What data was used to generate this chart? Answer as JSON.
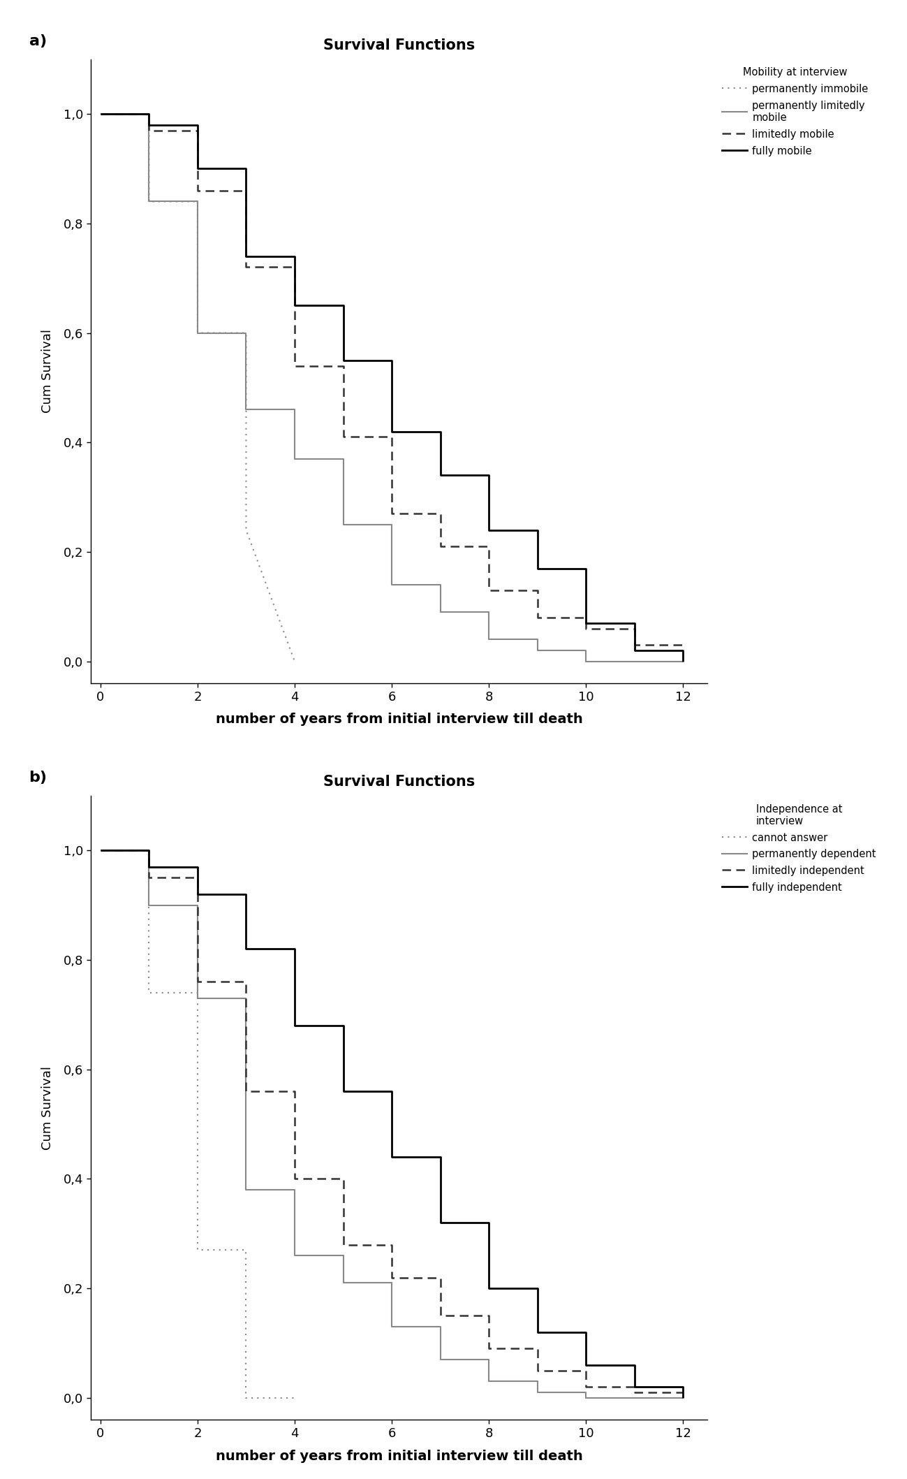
{
  "title_a": "Survival Functions",
  "title_b": "Survival Functions",
  "xlabel": "number of years from initial interview till death",
  "ylabel": "Cum Survival",
  "xlim": [
    -0.2,
    12.5
  ],
  "ylim": [
    -0.04,
    1.1
  ],
  "xticks": [
    0,
    2,
    4,
    6,
    8,
    10,
    12
  ],
  "yticks": [
    0.0,
    0.2,
    0.4,
    0.6,
    0.8,
    1.0
  ],
  "yticklabels": [
    "0,0",
    "0,2",
    "0,4",
    "0,6",
    "0,8",
    "1,0"
  ],
  "panel_a": {
    "legend_title": "Mobility at interview",
    "series": [
      {
        "label": "permanently immobile",
        "color": "#888888",
        "linestyle": "dotted",
        "linewidth": 1.5,
        "x": [
          0,
          1,
          1,
          2,
          2,
          3,
          3,
          4
        ],
        "y": [
          1.0,
          1.0,
          0.84,
          0.84,
          0.6,
          0.6,
          0.24,
          0.0
        ]
      },
      {
        "label": "permanently limitedly\nmobile",
        "color": "#888888",
        "linestyle": "solid",
        "linewidth": 1.5,
        "x": [
          0,
          1,
          1,
          2,
          2,
          3,
          3,
          4,
          4,
          5,
          5,
          6,
          6,
          7,
          7,
          8,
          8,
          9,
          9,
          10,
          10,
          12
        ],
        "y": [
          1.0,
          1.0,
          0.84,
          0.84,
          0.6,
          0.6,
          0.46,
          0.46,
          0.37,
          0.37,
          0.25,
          0.25,
          0.14,
          0.14,
          0.09,
          0.09,
          0.04,
          0.04,
          0.02,
          0.02,
          0.0,
          0.0
        ]
      },
      {
        "label": "limitedly mobile",
        "color": "#333333",
        "linestyle": "dashed",
        "linewidth": 1.8,
        "x": [
          0,
          1,
          1,
          2,
          2,
          3,
          3,
          4,
          4,
          5,
          5,
          6,
          6,
          7,
          7,
          8,
          8,
          9,
          9,
          10,
          10,
          11,
          11,
          12
        ],
        "y": [
          1.0,
          1.0,
          0.97,
          0.97,
          0.86,
          0.86,
          0.72,
          0.72,
          0.54,
          0.54,
          0.41,
          0.41,
          0.27,
          0.27,
          0.21,
          0.21,
          0.13,
          0.13,
          0.08,
          0.08,
          0.06,
          0.06,
          0.03,
          0.03
        ]
      },
      {
        "label": "fully mobile",
        "color": "#000000",
        "linestyle": "solid",
        "linewidth": 2.0,
        "x": [
          0,
          1,
          1,
          2,
          2,
          3,
          3,
          4,
          4,
          5,
          5,
          6,
          6,
          7,
          7,
          8,
          8,
          9,
          9,
          10,
          10,
          11,
          11,
          12,
          12
        ],
        "y": [
          1.0,
          1.0,
          0.98,
          0.98,
          0.9,
          0.9,
          0.74,
          0.74,
          0.65,
          0.65,
          0.55,
          0.55,
          0.42,
          0.42,
          0.34,
          0.34,
          0.24,
          0.24,
          0.17,
          0.17,
          0.07,
          0.07,
          0.02,
          0.02,
          0.0
        ]
      }
    ]
  },
  "panel_b": {
    "legend_title": "Independence at\ninterview",
    "series": [
      {
        "label": "cannot answer",
        "color": "#888888",
        "linestyle": "dotted",
        "linewidth": 1.5,
        "x": [
          0,
          1,
          1,
          2,
          2,
          3,
          3,
          4
        ],
        "y": [
          1.0,
          1.0,
          0.74,
          0.74,
          0.27,
          0.27,
          0.0,
          0.0
        ]
      },
      {
        "label": "permanently dependent",
        "color": "#888888",
        "linestyle": "solid",
        "linewidth": 1.5,
        "x": [
          0,
          1,
          1,
          2,
          2,
          3,
          3,
          4,
          4,
          5,
          5,
          6,
          6,
          7,
          7,
          8,
          8,
          9,
          9,
          10,
          10,
          12
        ],
        "y": [
          1.0,
          1.0,
          0.9,
          0.9,
          0.73,
          0.73,
          0.38,
          0.38,
          0.26,
          0.26,
          0.21,
          0.21,
          0.13,
          0.13,
          0.07,
          0.07,
          0.03,
          0.03,
          0.01,
          0.01,
          0.0,
          0.0
        ]
      },
      {
        "label": "limitedly independent",
        "color": "#333333",
        "linestyle": "dashed",
        "linewidth": 1.8,
        "x": [
          0,
          1,
          1,
          2,
          2,
          3,
          3,
          4,
          4,
          5,
          5,
          6,
          6,
          7,
          7,
          8,
          8,
          9,
          9,
          10,
          10,
          11,
          11,
          12
        ],
        "y": [
          1.0,
          1.0,
          0.95,
          0.95,
          0.76,
          0.76,
          0.56,
          0.56,
          0.4,
          0.4,
          0.28,
          0.28,
          0.22,
          0.22,
          0.15,
          0.15,
          0.09,
          0.09,
          0.05,
          0.05,
          0.02,
          0.02,
          0.01,
          0.01
        ]
      },
      {
        "label": "fully independent",
        "color": "#000000",
        "linestyle": "solid",
        "linewidth": 2.0,
        "x": [
          0,
          1,
          1,
          2,
          2,
          3,
          3,
          4,
          4,
          5,
          5,
          6,
          6,
          7,
          7,
          8,
          8,
          9,
          9,
          10,
          10,
          11,
          11,
          12,
          12
        ],
        "y": [
          1.0,
          1.0,
          0.97,
          0.97,
          0.92,
          0.92,
          0.82,
          0.82,
          0.68,
          0.68,
          0.56,
          0.56,
          0.44,
          0.44,
          0.32,
          0.32,
          0.2,
          0.2,
          0.12,
          0.12,
          0.06,
          0.06,
          0.02,
          0.02,
          0.0
        ]
      }
    ]
  }
}
